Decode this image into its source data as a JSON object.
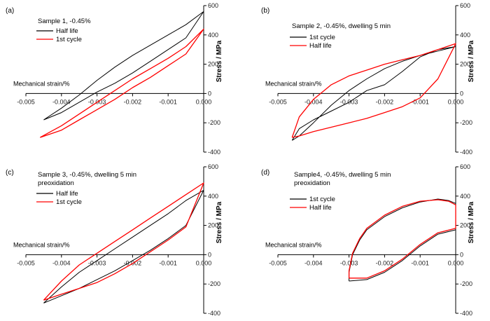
{
  "chart_data": [
    {
      "type": "line",
      "panel_label": "(a)",
      "annotation": [
        "Sample 1, -0.45%"
      ],
      "xlabel": "Mechanical strain/%",
      "ylabel": "Stress / MPa",
      "xlim": [
        -0.005,
        0.0
      ],
      "ylim": [
        -400,
        600
      ],
      "xticks": [
        -0.005,
        -0.004,
        -0.003,
        -0.002,
        -0.001,
        0.0
      ],
      "xtick_labels": [
        "-0.005",
        "-0.004",
        "-0.003",
        "-0.002",
        "-0.001",
        "0.000"
      ],
      "yticks": [
        -400,
        -200,
        0,
        200,
        400,
        600
      ],
      "ytick_labels": [
        "-400",
        "-200",
        "0",
        "200",
        "400",
        "600"
      ],
      "legend": "top-left",
      "series": [
        {
          "name": "Half life",
          "color": "#000000",
          "x": [
            -0.0045,
            -0.004,
            -0.0035,
            -0.003,
            -0.0025,
            -0.002,
            -0.0015,
            -0.001,
            -0.0005,
            0.0,
            -0.0005,
            -0.001,
            -0.0015,
            -0.002,
            -0.0025,
            -0.003,
            -0.0035,
            -0.004,
            -0.0045
          ],
          "y": [
            -180,
            -100,
            -10,
            90,
            180,
            260,
            330,
            400,
            470,
            560,
            380,
            300,
            220,
            140,
            70,
            10,
            -60,
            -130,
            -180
          ]
        },
        {
          "name": "1st cycle",
          "color": "#ff0000",
          "x": [
            -0.0046,
            -0.004,
            -0.0035,
            -0.003,
            -0.0025,
            -0.002,
            -0.0015,
            -0.001,
            -0.0005,
            0.0,
            -0.0005,
            -0.001,
            -0.0015,
            -0.002,
            -0.0025,
            -0.003,
            -0.0035,
            -0.004,
            -0.0046
          ],
          "y": [
            -300,
            -250,
            -180,
            -110,
            -40,
            40,
            110,
            190,
            270,
            440,
            320,
            240,
            170,
            100,
            20,
            -60,
            -140,
            -220,
            -300
          ]
        }
      ]
    },
    {
      "type": "line",
      "panel_label": "(b)",
      "annotation": [
        "Sample 2, -0.45%, dwelling 5 min"
      ],
      "xlabel": "Mechanical strain/%",
      "ylabel": "Stress / MPa",
      "xlim": [
        -0.005,
        0.0
      ],
      "ylim": [
        -400,
        600
      ],
      "xticks": [
        -0.005,
        -0.004,
        -0.003,
        -0.002,
        -0.001,
        0.0
      ],
      "xtick_labels": [
        "-0.005",
        "-0.004",
        "-0.003",
        "-0.002",
        "-0.001",
        "0.000"
      ],
      "yticks": [
        -400,
        -200,
        0,
        200,
        400,
        600
      ],
      "ytick_labels": [
        "-400",
        "-200",
        "0",
        "200",
        "400",
        "600"
      ],
      "legend": "top-left",
      "series": [
        {
          "name": "1st cycle",
          "color": "#000000",
          "x": [
            -0.0046,
            -0.0044,
            -0.004,
            -0.0035,
            -0.003,
            -0.0025,
            -0.002,
            -0.0015,
            -0.001,
            -0.0005,
            0.0,
            -0.0005,
            -0.001,
            -0.0015,
            -0.002,
            -0.0025,
            -0.003,
            -0.0035,
            -0.004,
            -0.0044,
            -0.0046
          ],
          "y": [
            -320,
            -240,
            -180,
            -120,
            -60,
            20,
            60,
            150,
            250,
            300,
            320,
            290,
            260,
            220,
            170,
            100,
            20,
            -80,
            -200,
            -290,
            -320
          ]
        },
        {
          "name": "Half life",
          "color": "#ff0000",
          "x": [
            -0.0046,
            -0.0044,
            -0.004,
            -0.0035,
            -0.003,
            -0.0025,
            -0.002,
            -0.0015,
            -0.001,
            -0.0005,
            0.0,
            -0.0005,
            -0.001,
            -0.0015,
            -0.002,
            -0.0025,
            -0.003,
            -0.0035,
            -0.004,
            -0.0044,
            -0.0046
          ],
          "y": [
            -300,
            -290,
            -260,
            -230,
            -200,
            -170,
            -130,
            -90,
            -30,
            100,
            340,
            300,
            260,
            230,
            200,
            160,
            120,
            60,
            -40,
            -160,
            -300
          ]
        }
      ]
    },
    {
      "type": "line",
      "panel_label": "(c)",
      "annotation": [
        "Sample 3, -0.45%, dwelling 5 min",
        "preoxidation"
      ],
      "xlabel": "Mechanical strain/%",
      "ylabel": "Stress / MPa",
      "xlim": [
        -0.005,
        0.0
      ],
      "ylim": [
        -400,
        600
      ],
      "xticks": [
        -0.005,
        -0.004,
        -0.003,
        -0.002,
        -0.001,
        0.0
      ],
      "xtick_labels": [
        "-0.005",
        "-0.004",
        "-0.003",
        "-0.002",
        "-0.001",
        "0.000"
      ],
      "yticks": [
        -400,
        -200,
        0,
        200,
        400,
        600
      ],
      "ytick_labels": [
        "-400",
        "-200",
        "0",
        "200",
        "400",
        "600"
      ],
      "legend": "top-left",
      "series": [
        {
          "name": "Half life",
          "color": "#000000",
          "x": [
            -0.0045,
            -0.004,
            -0.0035,
            -0.003,
            -0.0025,
            -0.002,
            -0.0015,
            -0.001,
            -0.0005,
            0.0,
            -0.0005,
            -0.001,
            -0.0015,
            -0.002,
            -0.0025,
            -0.003,
            -0.0035,
            -0.004,
            -0.0045
          ],
          "y": [
            -330,
            -280,
            -230,
            -170,
            -110,
            -40,
            30,
            110,
            200,
            440,
            370,
            280,
            200,
            120,
            40,
            -40,
            -120,
            -220,
            -330
          ]
        },
        {
          "name": "1st cycle",
          "color": "#ff0000",
          "x": [
            -0.0045,
            -0.004,
            -0.0035,
            -0.003,
            -0.0025,
            -0.002,
            -0.0015,
            -0.001,
            -0.0005,
            0.0,
            -0.0005,
            -0.001,
            -0.0015,
            -0.002,
            -0.0025,
            -0.003,
            -0.0035,
            -0.004,
            -0.0045
          ],
          "y": [
            -310,
            -270,
            -230,
            -190,
            -130,
            -60,
            20,
            100,
            190,
            490,
            410,
            330,
            250,
            170,
            90,
            10,
            -70,
            -180,
            -310
          ]
        }
      ]
    },
    {
      "type": "line",
      "panel_label": "(d)",
      "annotation": [
        "Sample4, -0.45%, dwelling 5 min",
        "preoxidation"
      ],
      "xlabel": "Mechanical strain/%",
      "ylabel": "Stress / MPa",
      "xlim": [
        -0.005,
        0.0
      ],
      "ylim": [
        -400,
        600
      ],
      "xticks": [
        -0.005,
        -0.004,
        -0.003,
        -0.002,
        -0.001,
        0.0
      ],
      "xtick_labels": [
        "-0.005",
        "-0.004",
        "-0.003",
        "-0.002",
        "-0.001",
        "0.000"
      ],
      "yticks": [
        -400,
        -200,
        0,
        200,
        400,
        600
      ],
      "ytick_labels": [
        "-400",
        "-200",
        "0",
        "200",
        "400",
        "600"
      ],
      "legend": "top-left",
      "series": [
        {
          "name": "1st cycle",
          "color": "#000000",
          "x": [
            -0.003,
            -0.003,
            -0.0029,
            -0.0027,
            -0.0025,
            -0.002,
            -0.0015,
            -0.001,
            -0.0005,
            -0.0002,
            0.0,
            0.0,
            -0.0005,
            -0.001,
            -0.0015,
            -0.002,
            -0.0025,
            -0.003
          ],
          "y": [
            -180,
            -120,
            0,
            100,
            170,
            260,
            320,
            360,
            380,
            370,
            350,
            170,
            140,
            60,
            -40,
            -120,
            -170,
            -180
          ]
        },
        {
          "name": "Half life",
          "color": "#ff0000",
          "x": [
            -0.003,
            -0.003,
            -0.0029,
            -0.0027,
            -0.0025,
            -0.002,
            -0.0015,
            -0.001,
            -0.0005,
            -0.0002,
            0.0,
            0.0,
            -0.0005,
            -0.001,
            -0.0015,
            -0.002,
            -0.0025,
            -0.003
          ],
          "y": [
            -160,
            -110,
            10,
            110,
            180,
            270,
            330,
            365,
            375,
            365,
            340,
            180,
            150,
            70,
            -30,
            -110,
            -160,
            -160
          ]
        }
      ]
    }
  ]
}
